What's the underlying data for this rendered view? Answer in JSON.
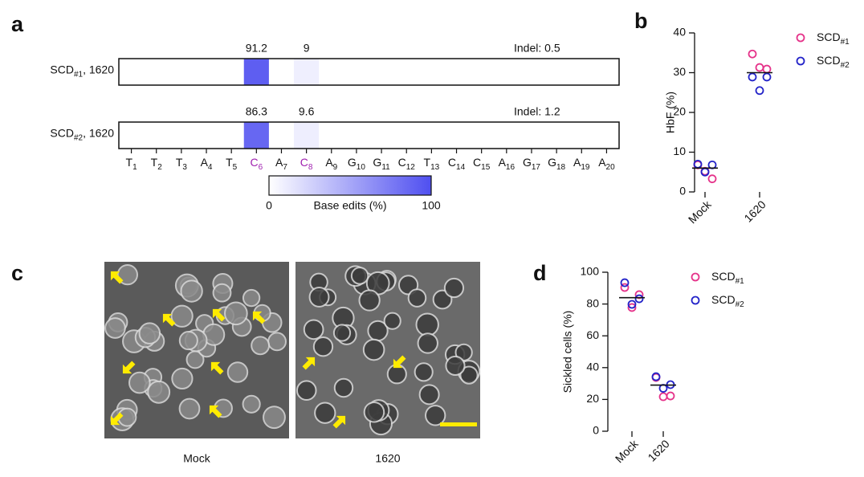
{
  "chart_data": [
    {
      "type": "heatmap",
      "panel": "a",
      "positions": [
        {
          "letter": "T",
          "sub": "1",
          "color": "#111111"
        },
        {
          "letter": "T",
          "sub": "2",
          "color": "#111111"
        },
        {
          "letter": "T",
          "sub": "3",
          "color": "#111111"
        },
        {
          "letter": "A",
          "sub": "4",
          "color": "#111111"
        },
        {
          "letter": "T",
          "sub": "5",
          "color": "#111111"
        },
        {
          "letter": "C",
          "sub": "6",
          "color": "#a020b0"
        },
        {
          "letter": "A",
          "sub": "7",
          "color": "#111111"
        },
        {
          "letter": "C",
          "sub": "8",
          "color": "#a020b0"
        },
        {
          "letter": "A",
          "sub": "9",
          "color": "#111111"
        },
        {
          "letter": "G",
          "sub": "10",
          "color": "#111111"
        },
        {
          "letter": "G",
          "sub": "11",
          "color": "#111111"
        },
        {
          "letter": "C",
          "sub": "12",
          "color": "#111111"
        },
        {
          "letter": "T",
          "sub": "13",
          "color": "#111111"
        },
        {
          "letter": "C",
          "sub": "14",
          "color": "#111111"
        },
        {
          "letter": "C",
          "sub": "15",
          "color": "#111111"
        },
        {
          "letter": "A",
          "sub": "16",
          "color": "#111111"
        },
        {
          "letter": "G",
          "sub": "17",
          "color": "#111111"
        },
        {
          "letter": "G",
          "sub": "18",
          "color": "#111111"
        },
        {
          "letter": "A",
          "sub": "19",
          "color": "#111111"
        },
        {
          "letter": "A",
          "sub": "20",
          "color": "#111111"
        }
      ],
      "rows": [
        {
          "label": "SCD",
          "label_sub": "#1",
          "label_suffix": ", 1620",
          "annotation": "Indel: 0.5",
          "values": [
            null,
            null,
            null,
            null,
            null,
            91.2,
            null,
            9.0,
            null,
            null,
            null,
            null,
            null,
            null,
            null,
            null,
            null,
            null,
            null,
            null
          ]
        },
        {
          "label": "SCD",
          "label_sub": "#2",
          "label_suffix": ", 1620",
          "annotation": "Indel: 1.2",
          "values": [
            null,
            null,
            null,
            null,
            null,
            86.3,
            null,
            9.6,
            null,
            null,
            null,
            null,
            null,
            null,
            null,
            null,
            null,
            null,
            null,
            null
          ]
        }
      ],
      "colorbar": {
        "label": "Base edits (%)",
        "lim": [
          0,
          100
        ],
        "ticks": [
          0,
          100
        ],
        "colors": [
          "#ffffff",
          "#4f4ff0"
        ]
      }
    },
    {
      "type": "dot",
      "panel": "b",
      "ylabel": "HbF (%)",
      "categories": [
        "Mock",
        "1620"
      ],
      "ylim": [
        0,
        40
      ],
      "yticks": [
        0,
        10,
        20,
        30,
        40
      ],
      "medians": [
        6,
        30
      ],
      "series": [
        {
          "name": "SCD",
          "name_sub": "#1",
          "color": "#e5338a",
          "values": [
            [
              6.8,
              5.2,
              3.3
            ],
            [
              34.7,
              31.3,
              30.9
            ]
          ]
        },
        {
          "name": "SCD",
          "name_sub": "#2",
          "color": "#2323c8",
          "values": [
            [
              7.0,
              6.8,
              5.0
            ],
            [
              28.9,
              28.9,
              25.5
            ]
          ]
        }
      ]
    },
    {
      "type": "dot",
      "panel": "d",
      "ylabel": "Sickled cells (%)",
      "categories": [
        "Mock",
        "1620"
      ],
      "ylim": [
        0,
        100
      ],
      "yticks": [
        0,
        20,
        40,
        60,
        80,
        100
      ],
      "medians": [
        84,
        29
      ],
      "series": [
        {
          "name": "SCD",
          "name_sub": "#1",
          "color": "#e5338a",
          "values": [
            [
              90.4,
              77.8,
              85.9
            ],
            [
              33.8,
              21.7,
              22.2
            ]
          ]
        },
        {
          "name": "SCD",
          "name_sub": "#2",
          "color": "#2323c8",
          "values": [
            [
              93.4,
              83.3,
              79.8
            ],
            [
              34.3,
              29.3,
              27.0
            ]
          ]
        }
      ]
    }
  ],
  "image_panel": {
    "panel": "c",
    "labels": [
      "Mock",
      "1620"
    ]
  }
}
